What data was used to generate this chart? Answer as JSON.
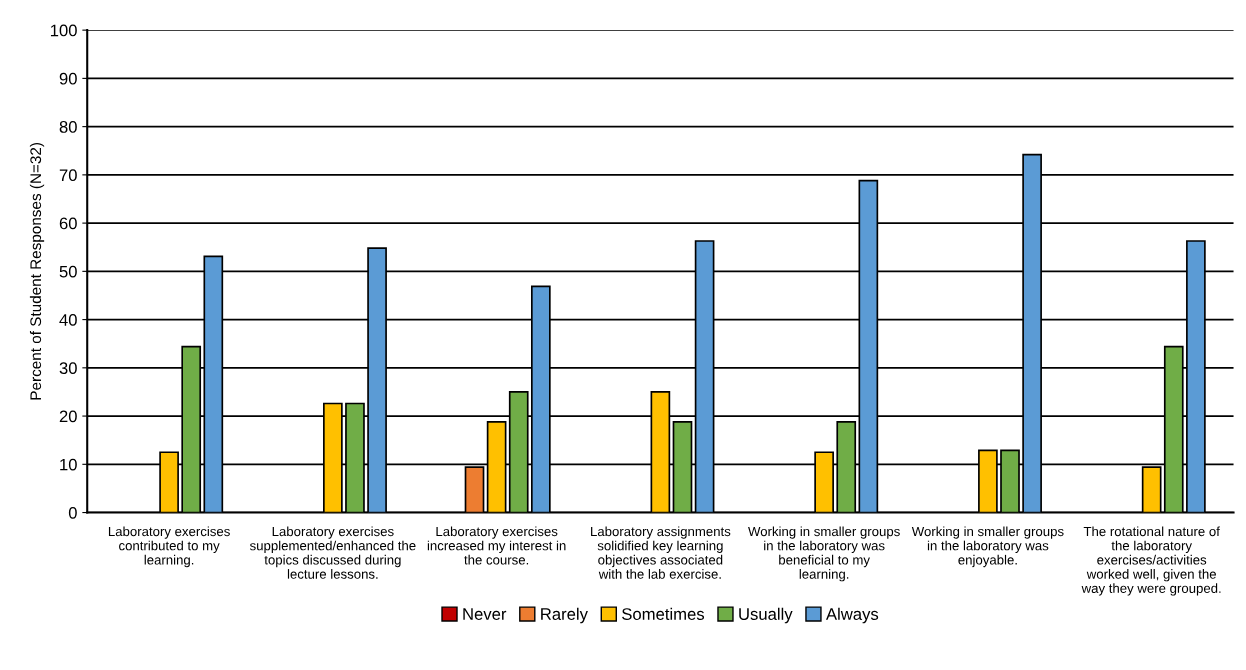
{
  "chart_data": {
    "type": "bar",
    "ylabel": "Percent of Student Responses (N=32)",
    "categories": [
      "Laboratory exercises contributed to my learning.",
      "Laboratory exercises supplemented/enhanced the topics discussed during lecture lessons.",
      "Laboratory exercises increased my interest in the course.",
      "Laboratory assignments solidified key learning objectives associated with the lab exercise.",
      "Working in smaller groups in the laboratory was beneficial to my learning.",
      "Working in smaller groups in the laboratory was enjoyable.",
      "The rotational nature of the laboratory exercises/activities worked well, given the way they were grouped."
    ],
    "series": [
      {
        "name": "Never",
        "color": "#c00000",
        "values": [
          0,
          0,
          0,
          0,
          0,
          0,
          0
        ]
      },
      {
        "name": "Rarely",
        "color": "#ed7d31",
        "values": [
          0,
          0,
          9.4,
          0,
          0,
          0,
          0
        ]
      },
      {
        "name": "Sometimes",
        "color": "#ffc000",
        "values": [
          12.5,
          22.6,
          18.8,
          25,
          12.5,
          12.9,
          9.4
        ]
      },
      {
        "name": "Usually",
        "color": "#70ad47",
        "values": [
          34.4,
          22.6,
          25,
          18.8,
          18.8,
          12.9,
          34.4
        ]
      },
      {
        "name": "Always",
        "color": "#5b9bd5",
        "values": [
          53.1,
          54.8,
          46.9,
          56.3,
          68.8,
          74.2,
          56.3
        ]
      }
    ],
    "ylim": [
      0,
      100
    ],
    "yticks": [
      0,
      10,
      20,
      30,
      40,
      50,
      60,
      70,
      80,
      90,
      100
    ],
    "grid": "y",
    "legend": "bottom"
  }
}
